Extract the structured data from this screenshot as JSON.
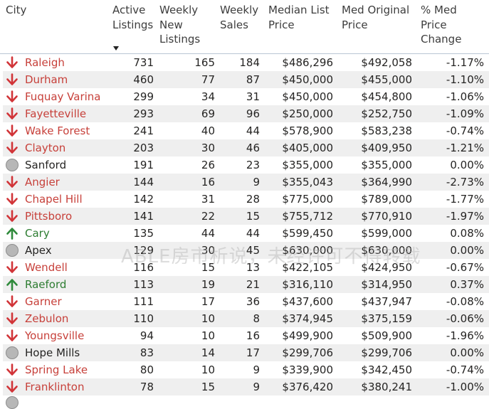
{
  "colors": {
    "down": "#c7403a",
    "up": "#2e7d32",
    "neutral_text": "#252423"
  },
  "columns": [
    "City",
    "Active Listings",
    "Weekly New Listings",
    "Weekly Sales",
    "Median List Price",
    "Med Original Price",
    "% Med Price Change"
  ],
  "header": {
    "city": "City",
    "active_listings": [
      "Active",
      "Listings"
    ],
    "weekly_new_listings": [
      "Weekly",
      "New",
      "Listings"
    ],
    "weekly_sales": [
      "Weekly",
      "Sales"
    ],
    "median_list_price": [
      "Median List",
      "Price"
    ],
    "med_original_price": [
      "Med Original",
      "Price"
    ],
    "pct_change": [
      "% Med",
      "Price",
      "Change"
    ]
  },
  "sorted_column": "Active Listings",
  "sort_direction": "descending",
  "rows": [
    {
      "trend": "down",
      "city": "Raleigh",
      "active": "731",
      "new": "165",
      "sales": "184",
      "median": "$486,296",
      "original": "$492,058",
      "change": "-1.17%"
    },
    {
      "trend": "down",
      "city": "Durham",
      "active": "460",
      "new": "77",
      "sales": "87",
      "median": "$450,000",
      "original": "$455,000",
      "change": "-1.10%"
    },
    {
      "trend": "down",
      "city": "Fuquay Varina",
      "active": "299",
      "new": "34",
      "sales": "31",
      "median": "$450,000",
      "original": "$454,800",
      "change": "-1.06%"
    },
    {
      "trend": "down",
      "city": "Fayetteville",
      "active": "293",
      "new": "69",
      "sales": "96",
      "median": "$250,000",
      "original": "$252,750",
      "change": "-1.09%"
    },
    {
      "trend": "down",
      "city": "Wake Forest",
      "active": "241",
      "new": "40",
      "sales": "44",
      "median": "$578,900",
      "original": "$583,238",
      "change": "-0.74%"
    },
    {
      "trend": "down",
      "city": "Clayton",
      "active": "203",
      "new": "30",
      "sales": "46",
      "median": "$405,000",
      "original": "$409,950",
      "change": "-1.21%"
    },
    {
      "trend": "flat",
      "city": "Sanford",
      "active": "191",
      "new": "26",
      "sales": "23",
      "median": "$355,000",
      "original": "$355,000",
      "change": "0.00%"
    },
    {
      "trend": "down",
      "city": "Angier",
      "active": "144",
      "new": "16",
      "sales": "9",
      "median": "$355,043",
      "original": "$364,990",
      "change": "-2.73%"
    },
    {
      "trend": "down",
      "city": "Chapel Hill",
      "active": "142",
      "new": "31",
      "sales": "28",
      "median": "$775,000",
      "original": "$789,000",
      "change": "-1.77%"
    },
    {
      "trend": "down",
      "city": "Pittsboro",
      "active": "141",
      "new": "22",
      "sales": "15",
      "median": "$755,712",
      "original": "$770,910",
      "change": "-1.97%"
    },
    {
      "trend": "up",
      "city": "Cary",
      "active": "135",
      "new": "44",
      "sales": "44",
      "median": "$599,450",
      "original": "$599,000",
      "change": "0.08%"
    },
    {
      "trend": "flat",
      "city": "Apex",
      "active": "129",
      "new": "30",
      "sales": "45",
      "median": "$630,000",
      "original": "$630,000",
      "change": "0.00%"
    },
    {
      "trend": "down",
      "city": "Wendell",
      "active": "116",
      "new": "15",
      "sales": "13",
      "median": "$422,105",
      "original": "$424,950",
      "change": "-0.67%"
    },
    {
      "trend": "up",
      "city": "Raeford",
      "active": "113",
      "new": "19",
      "sales": "21",
      "median": "$316,110",
      "original": "$314,950",
      "change": "0.37%"
    },
    {
      "trend": "down",
      "city": "Garner",
      "active": "111",
      "new": "17",
      "sales": "36",
      "median": "$437,600",
      "original": "$437,947",
      "change": "-0.08%"
    },
    {
      "trend": "down",
      "city": "Zebulon",
      "active": "110",
      "new": "10",
      "sales": "8",
      "median": "$374,945",
      "original": "$375,159",
      "change": "-0.06%"
    },
    {
      "trend": "down",
      "city": "Youngsville",
      "active": "94",
      "new": "10",
      "sales": "16",
      "median": "$499,900",
      "original": "$509,900",
      "change": "-1.96%"
    },
    {
      "trend": "flat",
      "city": "Hope Mills",
      "active": "83",
      "new": "14",
      "sales": "17",
      "median": "$299,706",
      "original": "$299,706",
      "change": "0.00%"
    },
    {
      "trend": "down",
      "city": "Spring Lake",
      "active": "80",
      "new": "10",
      "sales": "9",
      "median": "$339,900",
      "original": "$342,450",
      "change": "-0.74%"
    },
    {
      "trend": "down",
      "city": "Franklinton",
      "active": "78",
      "new": "15",
      "sales": "9",
      "median": "$376,420",
      "original": "$380,241",
      "change": "-1.00%"
    }
  ],
  "watermark": "ABLE房市析说，未经许可不得转载"
}
